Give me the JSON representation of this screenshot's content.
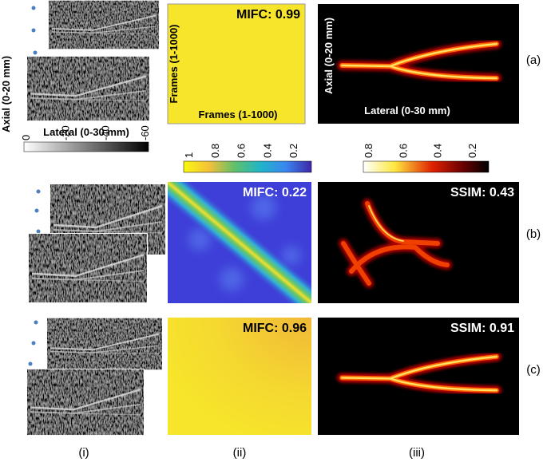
{
  "column_i": {
    "axial": "Axial (0-20 mm)",
    "lateral": "Lateral (0-30 mm)",
    "colorbar_ticks": [
      "0",
      "-20",
      "-40",
      "-60"
    ]
  },
  "column_ii": {
    "frames_y": "Frames (1-1000)",
    "frames_x": "Frames (1-1000)",
    "colorbar_ticks": [
      "1",
      "0.8",
      "0.6",
      "0.4",
      "0.2"
    ]
  },
  "column_iii": {
    "axial": "Axial (0-20 mm)",
    "lateral": "Lateral (0-30 mm)",
    "colorbar_ticks": [
      "0.8",
      "0.6",
      "0.4",
      "0.2"
    ]
  },
  "rows": {
    "a": {
      "label": "(a)",
      "mifc": "MIFC: 0.99"
    },
    "b": {
      "label": "(b)",
      "mifc": "MIFC: 0.22",
      "ssim": "SSIM: 0.43"
    },
    "c": {
      "label": "(c)",
      "mifc": "MIFC: 0.96",
      "ssim": "SSIM: 0.91"
    }
  },
  "columns": [
    "(i)",
    "(ii)",
    "(iii)"
  ]
}
